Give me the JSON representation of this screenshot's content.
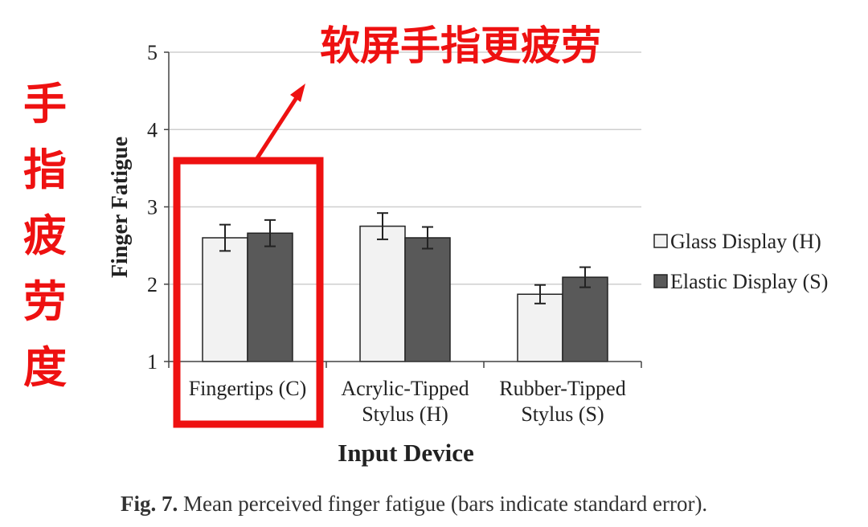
{
  "chart_data": {
    "type": "bar",
    "xlabel": "Input Device",
    "ylabel": "Finger Fatigue",
    "ylim": [
      1,
      5
    ],
    "yticks": [
      "1",
      "2",
      "3",
      "4",
      "5"
    ],
    "categories": [
      [
        "Fingertips (C)"
      ],
      [
        "Acrylic-Tipped",
        "Stylus (H)"
      ],
      [
        "Rubber-Tipped",
        "Stylus (S)"
      ]
    ],
    "series": [
      {
        "name": "Glass Display (H)",
        "values": [
          2.6,
          2.75,
          1.87
        ],
        "errors": [
          0.17,
          0.17,
          0.12
        ],
        "color": "#f2f2f2"
      },
      {
        "name": "Elastic Display (S)",
        "values": [
          2.66,
          2.6,
          2.09
        ],
        "errors": [
          0.17,
          0.14,
          0.13
        ],
        "color": "#595959"
      }
    ],
    "grid": true,
    "legend_position": "right",
    "caption_label": "Fig. 7.",
    "caption_text": " Mean perceived finger fatigue (bars indicate standard error)."
  },
  "annotations": {
    "top_note": "软屏手指更疲劳",
    "side_note": "手指疲劳度",
    "highlight_color": "#ee1111",
    "highlighted_category": "Fingertips (C)"
  }
}
